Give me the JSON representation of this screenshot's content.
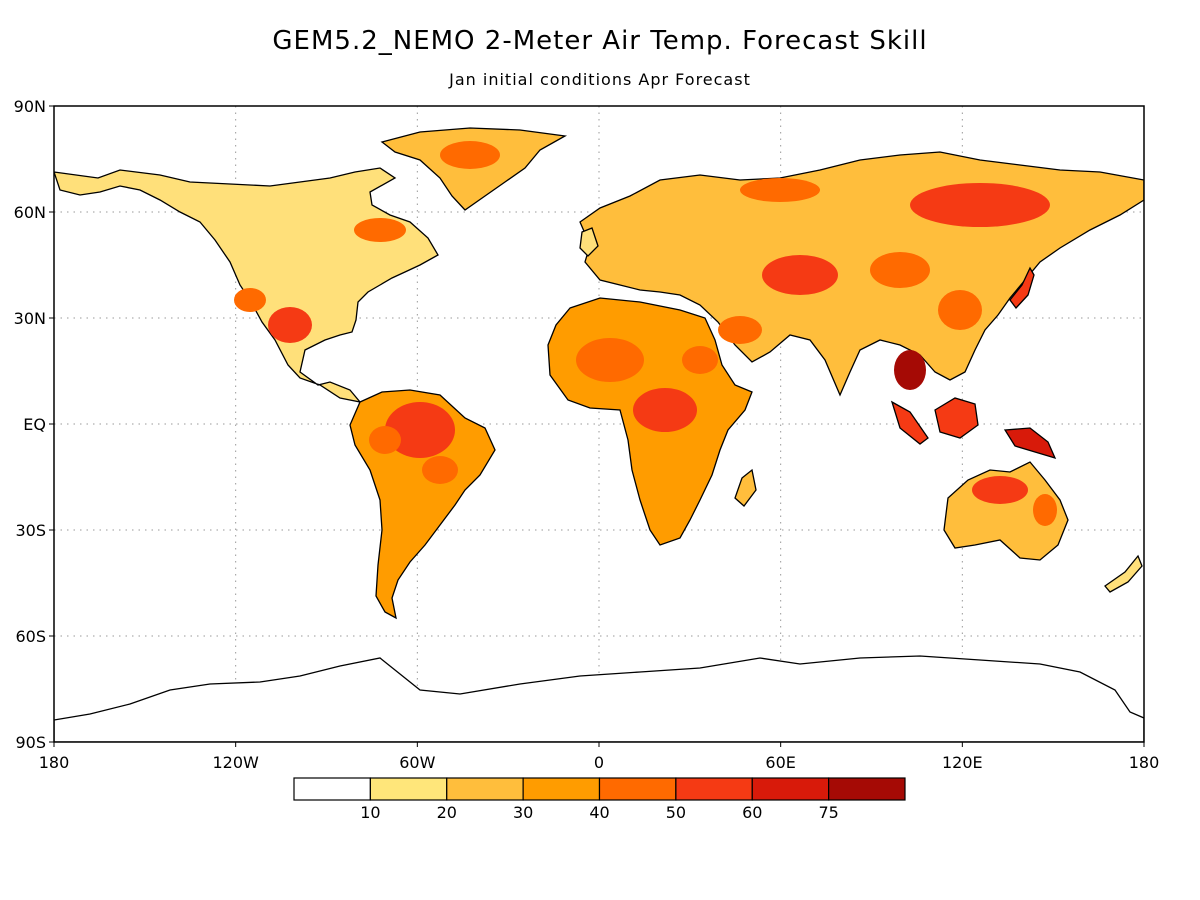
{
  "title": "GEM5.2_NEMO 2-Meter Air Temp. Forecast Skill",
  "subtitle": "Jan initial conditions   Apr Forecast",
  "map": {
    "lat_labels": [
      "90N",
      "60N",
      "30N",
      "EQ",
      "30S",
      "60S",
      "90S"
    ],
    "lon_labels": [
      "180",
      "120W",
      "60W",
      "0",
      "60E",
      "120E",
      "180"
    ],
    "grid": "dotted",
    "projection": "equirectangular"
  },
  "colorbar": {
    "labels": [
      "10",
      "20",
      "30",
      "40",
      "50",
      "60",
      "75"
    ],
    "colors": [
      "#ffffff",
      "#ffe67a",
      "#ffbe3c",
      "#ff9c00",
      "#ff6a00",
      "#f53a14",
      "#d81a0a",
      "#a50a05"
    ]
  }
}
